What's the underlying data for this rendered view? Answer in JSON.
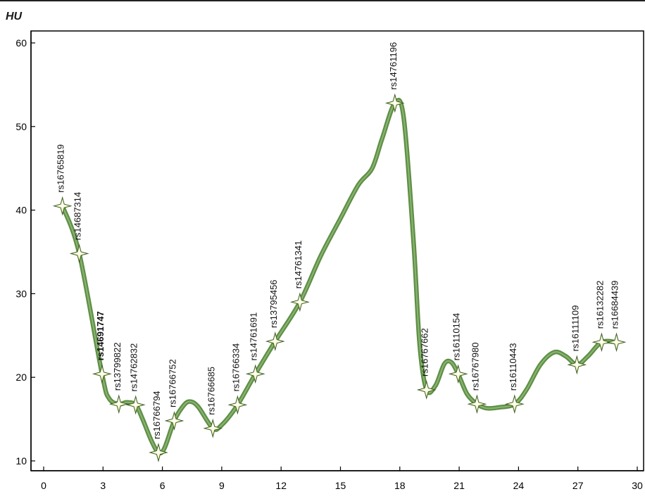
{
  "chart_data": {
    "type": "line",
    "ylabel": "HU",
    "xlabel": "",
    "xlim": [
      0,
      30
    ],
    "ylim": [
      10,
      60
    ],
    "xticks": [
      0,
      3,
      6,
      9,
      12,
      15,
      18,
      21,
      24,
      27,
      30
    ],
    "yticks": [
      10,
      20,
      30,
      40,
      50,
      60
    ],
    "grid": false,
    "series": [
      {
        "markers": [
          {
            "label": "rs16765819",
            "x": 0.95,
            "y": 40.5,
            "bold": false
          },
          {
            "label": "rs14687314",
            "x": 1.8,
            "y": 34.8,
            "bold": false
          },
          {
            "label": "rs14691747",
            "x": 2.95,
            "y": 20.4,
            "bold": true
          },
          {
            "label": "rs13799822",
            "x": 3.8,
            "y": 16.8,
            "bold": false
          },
          {
            "label": "rs14762832",
            "x": 4.65,
            "y": 16.7,
            "bold": false
          },
          {
            "label": "rs16766794",
            "x": 5.8,
            "y": 11.0,
            "bold": false
          },
          {
            "label": "rs16766752",
            "x": 6.6,
            "y": 14.8,
            "bold": false
          },
          {
            "label": "rs16766685",
            "x": 8.55,
            "y": 13.9,
            "bold": false
          },
          {
            "label": "rs16766334",
            "x": 9.8,
            "y": 16.7,
            "bold": false
          },
          {
            "label": "rs14761691",
            "x": 10.7,
            "y": 20.4,
            "bold": false
          },
          {
            "label": "rs13795456",
            "x": 11.7,
            "y": 24.3,
            "bold": false
          },
          {
            "label": "rs14761341",
            "x": 12.95,
            "y": 29.0,
            "bold": false
          },
          {
            "label": "rs14761196",
            "x": 17.75,
            "y": 52.8,
            "bold": false
          },
          {
            "label": "rs16767662",
            "x": 19.35,
            "y": 18.5,
            "bold": false
          },
          {
            "label": "rs16110154",
            "x": 20.95,
            "y": 20.4,
            "bold": false
          },
          {
            "label": "rs16767980",
            "x": 21.9,
            "y": 16.8,
            "bold": false
          },
          {
            "label": "rs16110443",
            "x": 23.8,
            "y": 16.8,
            "bold": false
          },
          {
            "label": "rs16111109",
            "x": 26.95,
            "y": 21.5,
            "bold": false
          },
          {
            "label": "rs16132282",
            "x": 28.2,
            "y": 24.2,
            "bold": false
          },
          {
            "label": "rs16684439",
            "x": 28.95,
            "y": 24.2,
            "bold": false
          }
        ],
        "curve": [
          [
            0.95,
            40.5
          ],
          [
            1.8,
            34.8
          ],
          [
            2.95,
            20.4
          ],
          [
            3.3,
            17.5
          ],
          [
            3.8,
            16.8
          ],
          [
            4.2,
            17.0
          ],
          [
            4.65,
            16.7
          ],
          [
            5.0,
            15.0
          ],
          [
            5.45,
            12.4
          ],
          [
            5.8,
            11.0
          ],
          [
            6.1,
            11.5
          ],
          [
            6.6,
            14.8
          ],
          [
            7.0,
            16.4
          ],
          [
            7.35,
            17.1
          ],
          [
            7.8,
            16.5
          ],
          [
            8.55,
            13.9
          ],
          [
            9.0,
            14.3
          ],
          [
            9.8,
            16.7
          ],
          [
            10.7,
            20.4
          ],
          [
            11.7,
            24.3
          ],
          [
            12.95,
            29.0
          ],
          [
            14.0,
            34.5
          ],
          [
            15.0,
            39.0
          ],
          [
            15.9,
            43.0
          ],
          [
            16.6,
            45.0
          ],
          [
            17.1,
            48.5
          ],
          [
            17.75,
            52.8
          ],
          [
            18.2,
            51.0
          ],
          [
            18.7,
            36.0
          ],
          [
            19.0,
            24.0
          ],
          [
            19.35,
            18.5
          ],
          [
            19.8,
            19.0
          ],
          [
            20.25,
            21.6
          ],
          [
            20.6,
            21.8
          ],
          [
            20.95,
            20.4
          ],
          [
            21.4,
            18.0
          ],
          [
            21.9,
            16.8
          ],
          [
            22.4,
            16.3
          ],
          [
            23.0,
            16.4
          ],
          [
            23.8,
            16.8
          ],
          [
            24.4,
            18.5
          ],
          [
            25.1,
            21.5
          ],
          [
            25.8,
            23.0
          ],
          [
            26.4,
            22.5
          ],
          [
            26.95,
            21.5
          ],
          [
            27.5,
            22.5
          ],
          [
            28.2,
            24.2
          ],
          [
            28.95,
            24.2
          ]
        ]
      }
    ],
    "colors": {
      "line": "#5f8f45",
      "line_light": "#9cc489",
      "marker_fill": "#f4f7b3",
      "marker_stroke": "#3c5b29",
      "axis": "#000000"
    }
  }
}
